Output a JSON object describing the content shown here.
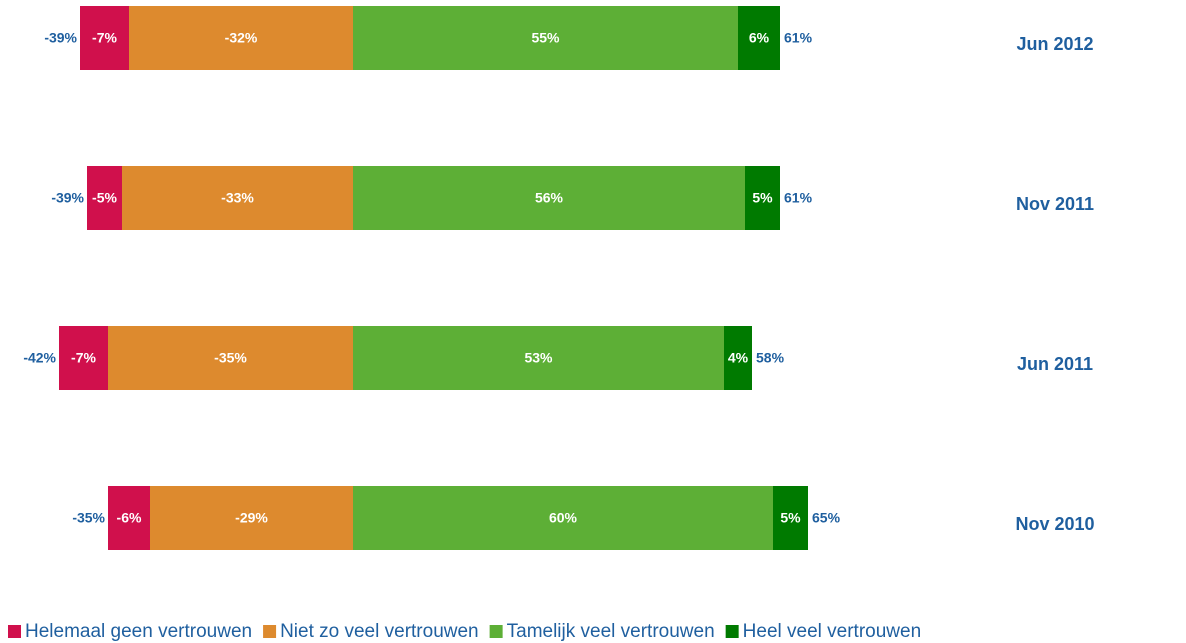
{
  "chart_data": {
    "type": "bar",
    "orientation": "horizontal",
    "stacked": true,
    "categories": [
      "Jun 2012",
      "Nov 2011",
      "Jun 2011",
      "Nov 2010"
    ],
    "series": [
      {
        "name": "Helemaal geen vertrouwen",
        "color": "#d0104c",
        "values": [
          -7,
          -5,
          -7,
          -6
        ],
        "value_labels": [
          "-7%",
          "-5%",
          "-7%",
          "-6%"
        ]
      },
      {
        "name": "Niet zo veel vertrouwen",
        "color": "#dd8a2e",
        "values": [
          -32,
          -33,
          -35,
          -29
        ],
        "value_labels": [
          "-32%",
          "-33%",
          "-35%",
          "-29%"
        ]
      },
      {
        "name": "Tamelijk veel vertrouwen",
        "color": "#5daf36",
        "values": [
          55,
          56,
          53,
          60
        ],
        "value_labels": [
          "55%",
          "56%",
          "53%",
          "60%"
        ]
      },
      {
        "name": "Heel veel vertrouwen",
        "color": "#007a00",
        "values": [
          6,
          5,
          4,
          5
        ],
        "value_labels": [
          "6%",
          "5%",
          "4%",
          "5%"
        ]
      }
    ],
    "totals": {
      "negative": {
        "values": [
          -39,
          -39,
          -42,
          -35
        ],
        "value_labels": [
          "-39%",
          "-39%",
          "-42%",
          "-35%"
        ]
      },
      "positive": {
        "values": [
          61,
          61,
          58,
          65
        ],
        "value_labels": [
          "61%",
          "61%",
          "58%",
          "65%"
        ]
      }
    },
    "xlim": [
      -50,
      90
    ],
    "legend": "bottom"
  }
}
